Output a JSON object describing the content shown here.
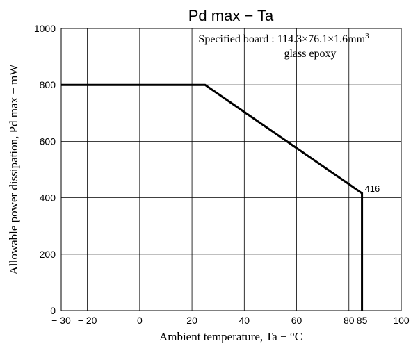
{
  "chart_data": {
    "type": "line",
    "title": "Pd max  −  Ta",
    "xlabel": "Ambient temperature,  Ta  −  °C",
    "ylabel": "Allowable power dissipation,  Pd max  −  mW",
    "xlim": [
      -30,
      100
    ],
    "ylim": [
      0,
      1000
    ],
    "x_ticks": [
      {
        "value": -30,
        "label": "− 30"
      },
      {
        "value": -20,
        "label": "− 20"
      },
      {
        "value": 0,
        "label": "0"
      },
      {
        "value": 20,
        "label": "20"
      },
      {
        "value": 40,
        "label": "40"
      },
      {
        "value": 60,
        "label": "60"
      },
      {
        "value": 80,
        "label": "80"
      },
      {
        "value": 85,
        "label": "85"
      },
      {
        "value": 100,
        "label": "100"
      }
    ],
    "y_ticks": [
      {
        "value": 0,
        "label": "0"
      },
      {
        "value": 200,
        "label": "200"
      },
      {
        "value": 400,
        "label": "400"
      },
      {
        "value": 600,
        "label": "600"
      },
      {
        "value": 800,
        "label": "800"
      },
      {
        "value": 1000,
        "label": "1000"
      }
    ],
    "grid": true,
    "series": [
      {
        "x": [
          -30,
          25,
          85,
          85
        ],
        "y": [
          800,
          800,
          416,
          0
        ],
        "color": "#000000"
      }
    ],
    "annotations": [
      {
        "text": "416",
        "x": 85,
        "y": 416
      },
      {
        "text": "Specified board : 114.3×76.1×1.6mm",
        "superscript": "3"
      },
      {
        "text": "glass epoxy"
      }
    ]
  }
}
